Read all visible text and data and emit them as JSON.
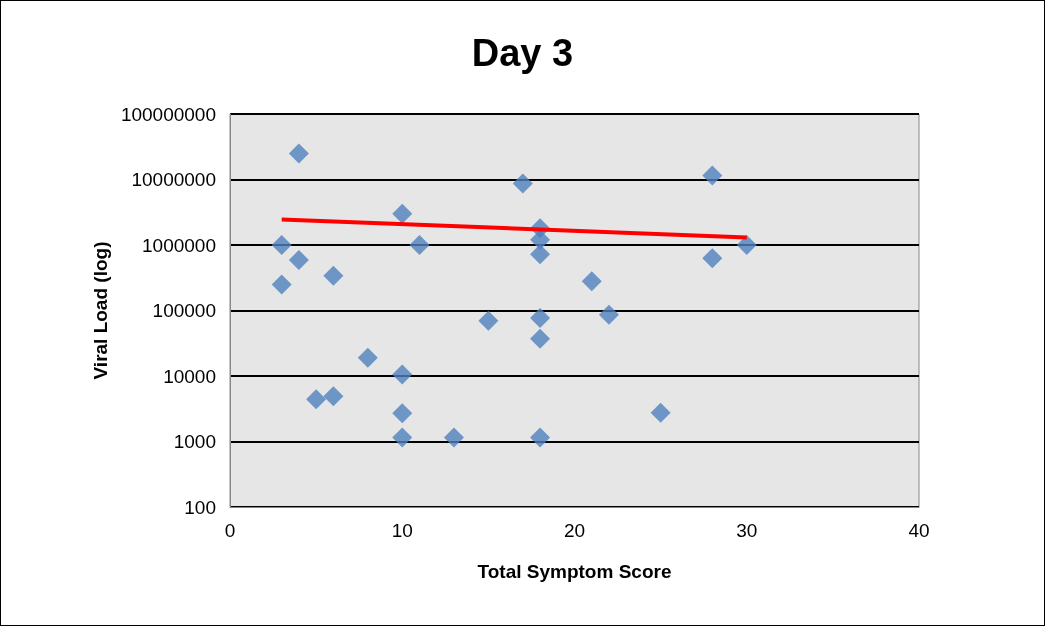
{
  "chart_data": {
    "type": "scatter",
    "title": "Day 3",
    "xlabel": "Total Symptom Score",
    "ylabel": "Viral Load (log)",
    "log": "y",
    "grid": "y",
    "marker": "diamond",
    "xlim": [
      0,
      40
    ],
    "xticks": [
      0,
      10,
      20,
      30,
      40
    ],
    "ylim": [
      100,
      100000000
    ],
    "yticks": [
      100,
      1000,
      10000,
      100000,
      1000000,
      10000000,
      100000000
    ],
    "series": [
      {
        "color": "#4f81bd",
        "x": [
          3,
          3,
          4,
          4,
          5,
          6,
          6,
          8,
          10,
          10,
          10,
          10,
          11,
          13,
          15,
          17,
          18,
          18,
          18,
          18,
          18,
          18,
          21,
          22,
          25,
          28,
          28,
          30
        ],
        "values": [
          1000000,
          250000,
          25000000,
          590000,
          4400,
          4900,
          340000,
          19000,
          3000000,
          10500,
          2700,
          1150,
          1000000,
          1150,
          70000,
          8700000,
          1800000,
          1200000,
          720000,
          77000,
          37000,
          1150,
          280000,
          86000,
          2750,
          11500000,
          630000,
          1000000
        ]
      },
      {
        "type": "line",
        "color": "#ff0000",
        "marker": "none",
        "x": [
          3,
          30
        ],
        "values": [
          2450000,
          1300000
        ]
      }
    ]
  }
}
